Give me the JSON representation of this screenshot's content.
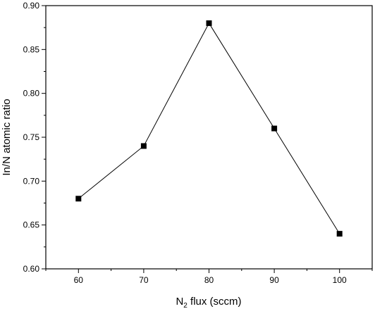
{
  "chart_data": {
    "type": "line",
    "title": "",
    "xlabel": {
      "main": "N",
      "sub": "2",
      "rest": " flux (sccm)"
    },
    "ylabel": "In/N atomic ratio",
    "x": [
      60,
      70,
      80,
      90,
      100
    ],
    "series": [
      {
        "values": [
          0.68,
          0.74,
          0.88,
          0.76,
          0.64
        ],
        "marker": "square",
        "color": "#000000"
      }
    ],
    "xlim": [
      55,
      105
    ],
    "ylim": [
      0.6,
      0.9
    ],
    "xticks": [
      "60",
      "70",
      "80",
      "90",
      "100"
    ],
    "yticks": [
      "0.60",
      "0.65",
      "0.70",
      "0.75",
      "0.80",
      "0.85",
      "0.90"
    ],
    "grid": false,
    "legend": "none"
  }
}
